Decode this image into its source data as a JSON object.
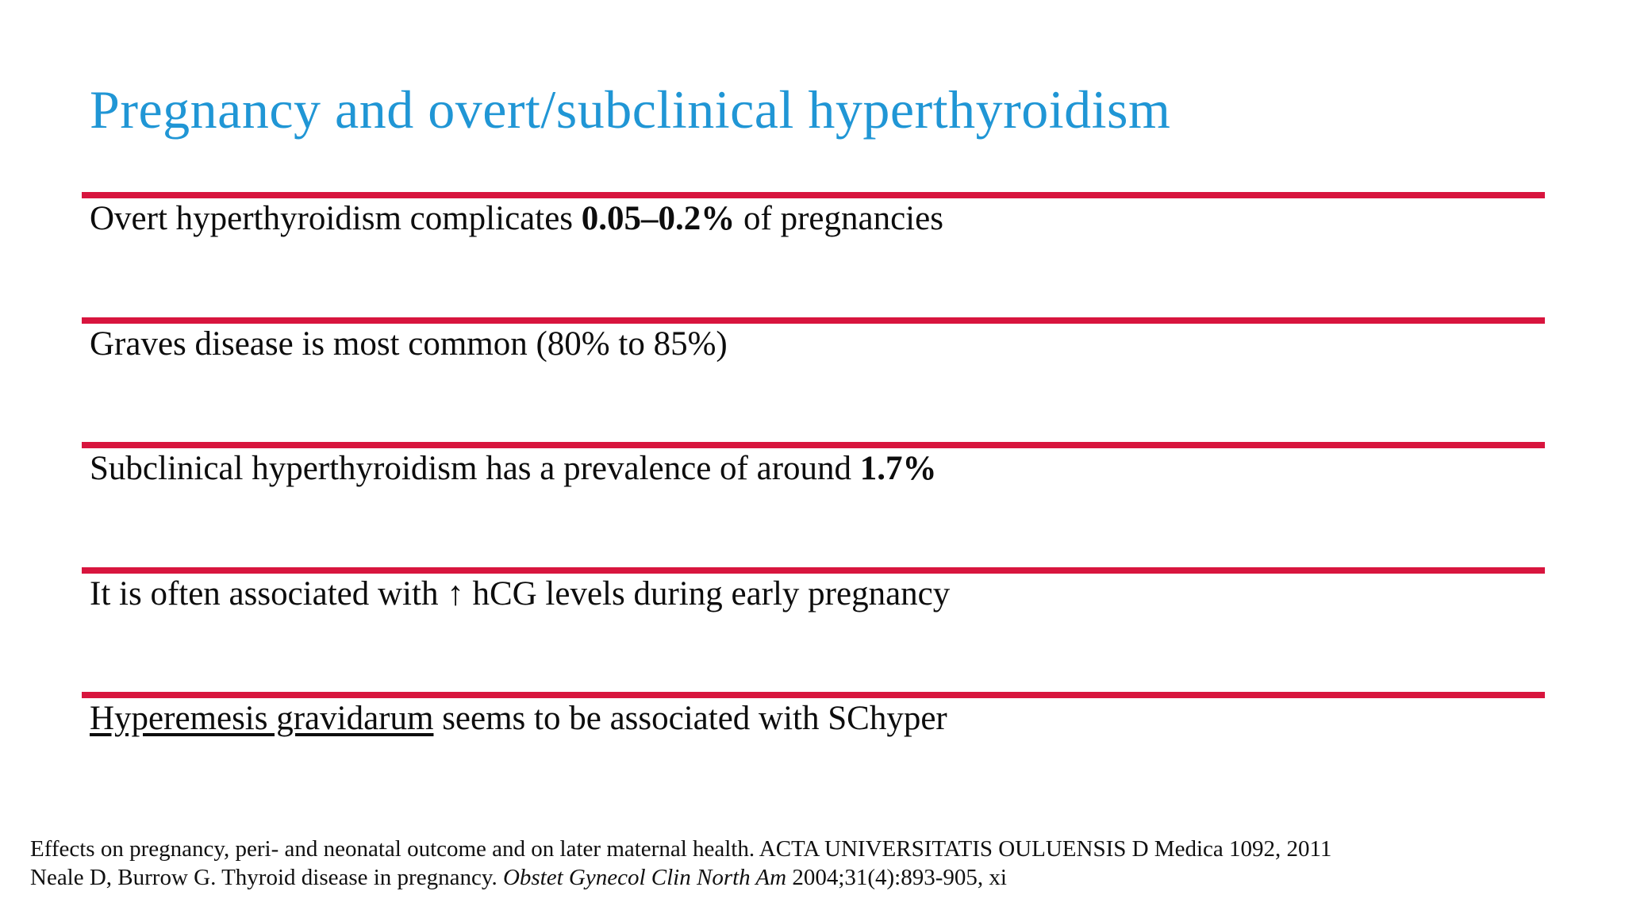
{
  "slide": {
    "title": "Pregnancy and overt/subclinical hyperthyroidism",
    "colors": {
      "title_blue": "#2096D5",
      "divider_red": "#D8153E",
      "text_black": "#0D0D0D"
    },
    "bullets": [
      {
        "pre": "Overt hyperthyroidism complicates ",
        "bold": "0.05–0.2%",
        "post": " of pregnancies"
      },
      {
        "pre": "Graves disease is most common (80% to 85%)",
        "bold": "",
        "post": ""
      },
      {
        "pre": "Subclinical hyperthyroidism has a prevalence of around ",
        "bold": "1.7%",
        "post": ""
      },
      {
        "pre": "It is often associated with ↑ hCG levels during early pregnancy",
        "bold": "",
        "post": ""
      },
      {
        "underlined": "Hyperemesis gravidarum",
        "post": " seems to be associated with SChyper"
      }
    ],
    "footnotes": [
      {
        "text": "Effects on pregnancy, peri- and neonatal outcome and on later maternal health. ACTA UNIVERSITATIS OULUENSIS D Medica 1092, 2011"
      },
      {
        "pre": "Neale D, Burrow G. Thyroid disease in pregnancy. ",
        "italic": "Obstet Gynecol Clin North Am",
        "post": " 2004;31(4):893-905, xi"
      }
    ]
  }
}
